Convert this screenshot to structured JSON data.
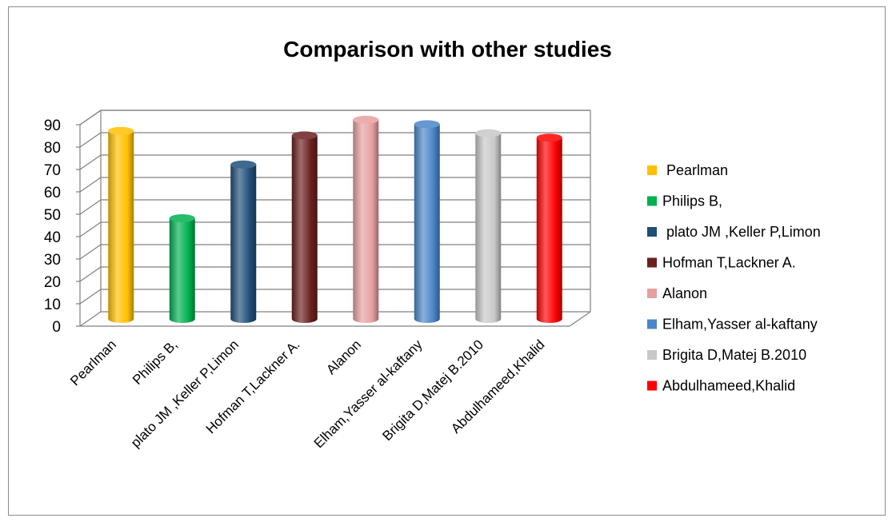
{
  "chart_data": {
    "type": "bar",
    "title": "Comparison with other studies",
    "xlabel": "",
    "ylabel": "",
    "ylim": [
      0,
      90
    ],
    "yticks": [
      0,
      10,
      20,
      30,
      40,
      50,
      60,
      70,
      80,
      90
    ],
    "grid": true,
    "legend_position": "right",
    "style": "3d-cylinder",
    "categories": [
      "Pearlman",
      "Philips B,",
      "plato JM ,Keller P,Limon",
      "Hofman T,Lackner A.",
      "Alanon",
      "Elham,Yasser al-kaftany",
      "Brigita D,Matej B.2010",
      "Abdulhameed,Khalid"
    ],
    "legend_labels": [
      " Pearlman",
      "Philips B,",
      " plato JM ,Keller P,Limon",
      "Hofman T,Lackner A.",
      "Alanon",
      "Elham,Yasser al-kaftany",
      "Brigita D,Matej B.2010",
      "Abdulhameed,Khalid"
    ],
    "values": [
      84,
      45,
      69,
      82,
      89,
      87,
      83,
      81
    ],
    "colors": [
      "#ffc000",
      "#00b050",
      "#1f4e79",
      "#6b1f1f",
      "#e6a0a0",
      "#4a86c8",
      "#c8c8c8",
      "#ff0000"
    ]
  }
}
